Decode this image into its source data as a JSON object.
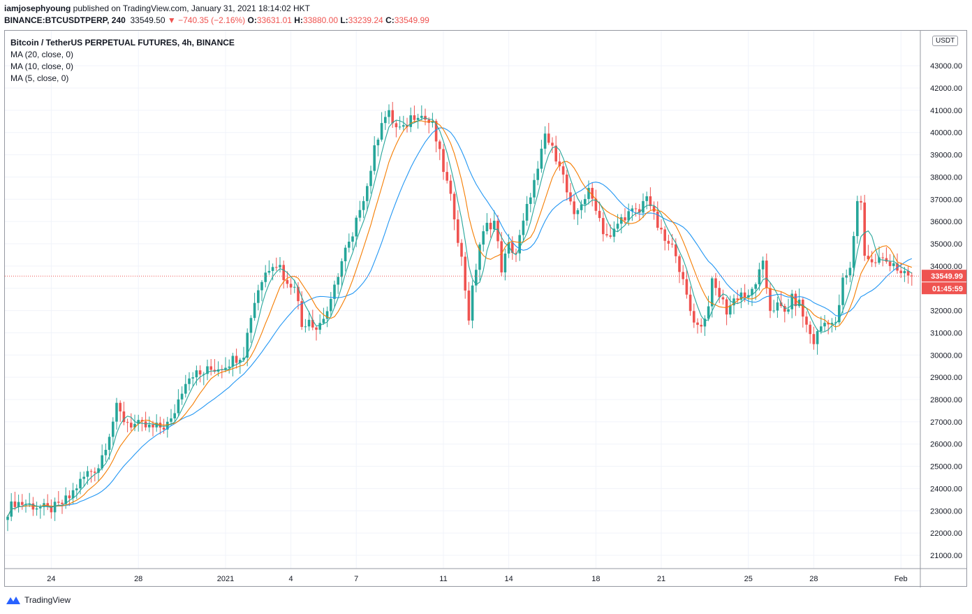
{
  "header": {
    "line1_user": "iamjosephyoung",
    "line1_rest": " published on TradingView.com, January 31, 2021 18:14:02 HKT",
    "symbol": "BINANCE:BTCUSDTPERP, 240",
    "last": "33549.50",
    "change": "▼ −740.35 (−2.16%)",
    "o_label": "O:",
    "o": "33631.01",
    "h_label": "H:",
    "h": "33880.00",
    "l_label": "L:",
    "l": "33239.24",
    "c_label": "C:",
    "c": "33549.99"
  },
  "legend": {
    "title": "Bitcoin / TetherUS PERPETUAL FUTURES, 4h, BINANCE",
    "ma20": "MA (20, close, 0)",
    "ma10": "MA (10, close, 0)",
    "ma5": "MA (5, close, 0)"
  },
  "currency": "USDT",
  "price_label": "33549.99",
  "countdown": "01:45:59",
  "footer": {
    "brand": "TradingView"
  },
  "colors": {
    "up": "#26a69a",
    "down": "#ef5350",
    "ma20": "#2196f3",
    "ma10": "#f57c00",
    "ma5": "#26a69a",
    "grid": "#f0f3fa"
  },
  "chart_data": {
    "type": "candlestick",
    "title": "Bitcoin / TetherUS PERPETUAL FUTURES, 4h, BINANCE",
    "interval": "4h",
    "ylim": [
      20500,
      44000
    ],
    "y_ticks": [
      21000,
      22000,
      23000,
      24000,
      25000,
      26000,
      27000,
      28000,
      29000,
      30000,
      31000,
      32000,
      33000,
      34000,
      35000,
      36000,
      37000,
      38000,
      39000,
      40000,
      41000,
      42000,
      43000
    ],
    "y_tick_labels": [
      "21000.00",
      "22000.00",
      "23000.00",
      "24000.00",
      "25000.00",
      "26000.00",
      "27000.00",
      "28000.00",
      "29000.00",
      "30000.00",
      "31000.00",
      "32000.00",
      "33000.00",
      "34000.00",
      "35000.00",
      "36000.00",
      "37000.00",
      "38000.00",
      "39000.00",
      "40000.00",
      "41000.00",
      "42000.00",
      "43000.00"
    ],
    "x_ticks": [
      {
        "bar": 12,
        "label": "24"
      },
      {
        "bar": 36,
        "label": "28"
      },
      {
        "bar": 60,
        "label": "2021"
      },
      {
        "bar": 78,
        "label": "4"
      },
      {
        "bar": 96,
        "label": "7"
      },
      {
        "bar": 120,
        "label": "11"
      },
      {
        "bar": 138,
        "label": "14"
      },
      {
        "bar": 162,
        "label": "18"
      },
      {
        "bar": 180,
        "label": "21"
      },
      {
        "bar": 204,
        "label": "25"
      },
      {
        "bar": 222,
        "label": "28"
      },
      {
        "bar": 246,
        "label": "Feb"
      }
    ],
    "anchors": [
      [
        0,
        23000
      ],
      [
        2,
        23400
      ],
      [
        5,
        23300
      ],
      [
        8,
        23200
      ],
      [
        11,
        23050
      ],
      [
        14,
        23200
      ],
      [
        17,
        23600
      ],
      [
        19,
        24100
      ],
      [
        22,
        24700
      ],
      [
        25,
        25000
      ],
      [
        28,
        26500
      ],
      [
        30,
        27600
      ],
      [
        32,
        27100
      ],
      [
        34,
        26900
      ],
      [
        37,
        26800
      ],
      [
        40,
        26700
      ],
      [
        43,
        26800
      ],
      [
        45,
        27000
      ],
      [
        47,
        28000
      ],
      [
        49,
        28900
      ],
      [
        51,
        29200
      ],
      [
        53,
        29100
      ],
      [
        55,
        29300
      ],
      [
        57,
        29400
      ],
      [
        59,
        29500
      ],
      [
        61,
        29700
      ],
      [
        63,
        29900
      ],
      [
        65,
        30100
      ],
      [
        67,
        31800
      ],
      [
        69,
        33000
      ],
      [
        71,
        33700
      ],
      [
        73,
        34200
      ],
      [
        75,
        34000
      ],
      [
        77,
        33100
      ],
      [
        79,
        33300
      ],
      [
        81,
        31300
      ],
      [
        83,
        31700
      ],
      [
        85,
        31200
      ],
      [
        87,
        31700
      ],
      [
        89,
        32300
      ],
      [
        91,
        33700
      ],
      [
        93,
        34700
      ],
      [
        95,
        35200
      ],
      [
        97,
        36700
      ],
      [
        99,
        37600
      ],
      [
        101,
        39200
      ],
      [
        103,
        40600
      ],
      [
        105,
        40800
      ],
      [
        107,
        40200
      ],
      [
        109,
        40100
      ],
      [
        111,
        40700
      ],
      [
        113,
        40900
      ],
      [
        115,
        40600
      ],
      [
        117,
        40300
      ],
      [
        119,
        39000
      ],
      [
        121,
        37700
      ],
      [
        123,
        36300
      ],
      [
        125,
        34300
      ],
      [
        127,
        31700
      ],
      [
        128,
        32900
      ],
      [
        130,
        35000
      ],
      [
        132,
        35800
      ],
      [
        134,
        36000
      ],
      [
        136,
        33900
      ],
      [
        138,
        34900
      ],
      [
        140,
        34600
      ],
      [
        142,
        35900
      ],
      [
        144,
        37300
      ],
      [
        146,
        38200
      ],
      [
        148,
        39900
      ],
      [
        150,
        39200
      ],
      [
        152,
        38700
      ],
      [
        154,
        37300
      ],
      [
        156,
        36100
      ],
      [
        158,
        36900
      ],
      [
        160,
        37300
      ],
      [
        162,
        36700
      ],
      [
        164,
        35600
      ],
      [
        166,
        35200
      ],
      [
        168,
        35900
      ],
      [
        170,
        36300
      ],
      [
        172,
        36400
      ],
      [
        174,
        36400
      ],
      [
        176,
        37300
      ],
      [
        178,
        36200
      ],
      [
        180,
        35400
      ],
      [
        182,
        34900
      ],
      [
        184,
        34700
      ],
      [
        186,
        33200
      ],
      [
        188,
        32000
      ],
      [
        190,
        31300
      ],
      [
        192,
        31600
      ],
      [
        194,
        33200
      ],
      [
        196,
        32700
      ],
      [
        198,
        32000
      ],
      [
        200,
        32500
      ],
      [
        202,
        32800
      ],
      [
        204,
        32500
      ],
      [
        206,
        33300
      ],
      [
        208,
        34000
      ],
      [
        210,
        32100
      ],
      [
        212,
        32200
      ],
      [
        214,
        31900
      ],
      [
        216,
        32500
      ],
      [
        218,
        32300
      ],
      [
        220,
        31300
      ],
      [
        222,
        30600
      ],
      [
        224,
        31300
      ],
      [
        226,
        31600
      ],
      [
        228,
        31300
      ],
      [
        230,
        33300
      ],
      [
        232,
        33800
      ],
      [
        234,
        37000
      ],
      [
        235,
        36800
      ],
      [
        236,
        34600
      ],
      [
        238,
        34100
      ],
      [
        240,
        34300
      ],
      [
        242,
        34200
      ],
      [
        244,
        34200
      ],
      [
        246,
        33550
      ]
    ],
    "series": [
      {
        "name": "MA (20, close, 0)",
        "color": "#2196f3"
      },
      {
        "name": "MA (10, close, 0)",
        "color": "#f57c00"
      },
      {
        "name": "MA (5, close, 0)",
        "color": "#26a69a"
      }
    ],
    "last_close": 33549.99,
    "grid": true,
    "legend_position": "top-left"
  }
}
